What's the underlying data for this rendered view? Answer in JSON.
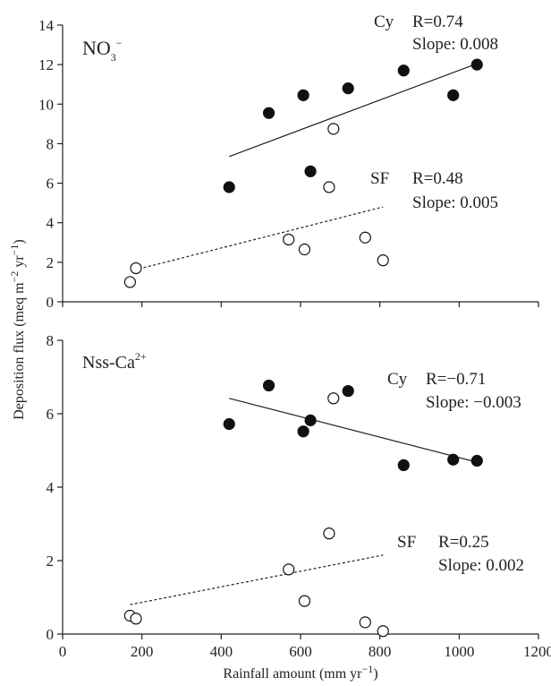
{
  "chart_data": [
    {
      "type": "scatter",
      "panel_label": {
        "main": "NO",
        "sub": "3",
        "sup": "−"
      },
      "xlim": [
        0,
        1200
      ],
      "ylim": [
        0,
        14
      ],
      "yticks": [
        "0",
        "2",
        "4",
        "6",
        "8",
        "10",
        "12",
        "14"
      ],
      "grid": false,
      "series": [
        {
          "name": "Cy",
          "marker": "filled-circle",
          "points": [
            [
              420,
              5.8
            ],
            [
              520,
              9.55
            ],
            [
              607,
              10.45
            ],
            [
              625,
              6.6
            ],
            [
              720,
              10.8
            ],
            [
              860,
              11.7
            ],
            [
              985,
              10.45
            ],
            [
              1045,
              12.0
            ]
          ],
          "fit": {
            "x": [
              420,
              1045
            ],
            "y": [
              7.35,
              12.05
            ],
            "style": "solid"
          },
          "annotation": {
            "name": "Cy",
            "r": "R=0.74",
            "slope": "Slope: 0.008"
          }
        },
        {
          "name": "SF",
          "marker": "open-circle",
          "points": [
            [
              170,
              1.0
            ],
            [
              185,
              1.7
            ],
            [
              570,
              3.15
            ],
            [
              610,
              2.65
            ],
            [
              672,
              5.8
            ],
            [
              683,
              8.75
            ],
            [
              763,
              3.25
            ],
            [
              808,
              2.1
            ]
          ],
          "fit": {
            "x": [
              180,
              808
            ],
            "y": [
              1.6,
              4.8
            ],
            "style": "dashed"
          },
          "annotation": {
            "name": "SF",
            "r": "R=0.48",
            "slope": "Slope: 0.005"
          }
        }
      ]
    },
    {
      "type": "scatter",
      "panel_label": {
        "main": "Nss-Ca",
        "sup": "2+"
      },
      "xlim": [
        0,
        1200
      ],
      "ylim": [
        0,
        8
      ],
      "yticks": [
        "0",
        "2",
        "4",
        "6",
        "8"
      ],
      "xticks": [
        "0",
        "200",
        "400",
        "600",
        "800",
        "1000",
        "1200"
      ],
      "grid": false,
      "series": [
        {
          "name": "Cy",
          "marker": "filled-circle",
          "points": [
            [
              420,
              5.72
            ],
            [
              520,
              6.77
            ],
            [
              607,
              5.52
            ],
            [
              625,
              5.82
            ],
            [
              720,
              6.62
            ],
            [
              860,
              4.6
            ],
            [
              985,
              4.75
            ],
            [
              1045,
              4.72
            ]
          ],
          "fit": {
            "x": [
              420,
              1045
            ],
            "y": [
              6.42,
              4.68
            ],
            "style": "solid"
          },
          "annotation": {
            "name": "Cy",
            "r": "R=−0.71",
            "slope": "Slope: −0.003"
          }
        },
        {
          "name": "SF",
          "marker": "open-circle",
          "points": [
            [
              170,
              0.5
            ],
            [
              185,
              0.42
            ],
            [
              570,
              1.76
            ],
            [
              610,
              0.9
            ],
            [
              672,
              2.74
            ],
            [
              683,
              6.42
            ],
            [
              763,
              0.32
            ],
            [
              808,
              0.08
            ]
          ],
          "fit": {
            "x": [
              170,
              808
            ],
            "y": [
              0.8,
              2.15
            ],
            "style": "dashed"
          },
          "annotation": {
            "name": "SF",
            "r": "R=0.25",
            "slope": "Slope: 0.002"
          }
        }
      ]
    }
  ],
  "axes": {
    "ylabel": {
      "pre": "Deposition flux (meq m",
      "sup1": "−2",
      "mid": " yr",
      "sup2": "−1",
      "post": ")"
    },
    "xlabel": {
      "pre": "Rainfall amount (mm yr",
      "sup": "−1",
      "post": ")"
    }
  }
}
